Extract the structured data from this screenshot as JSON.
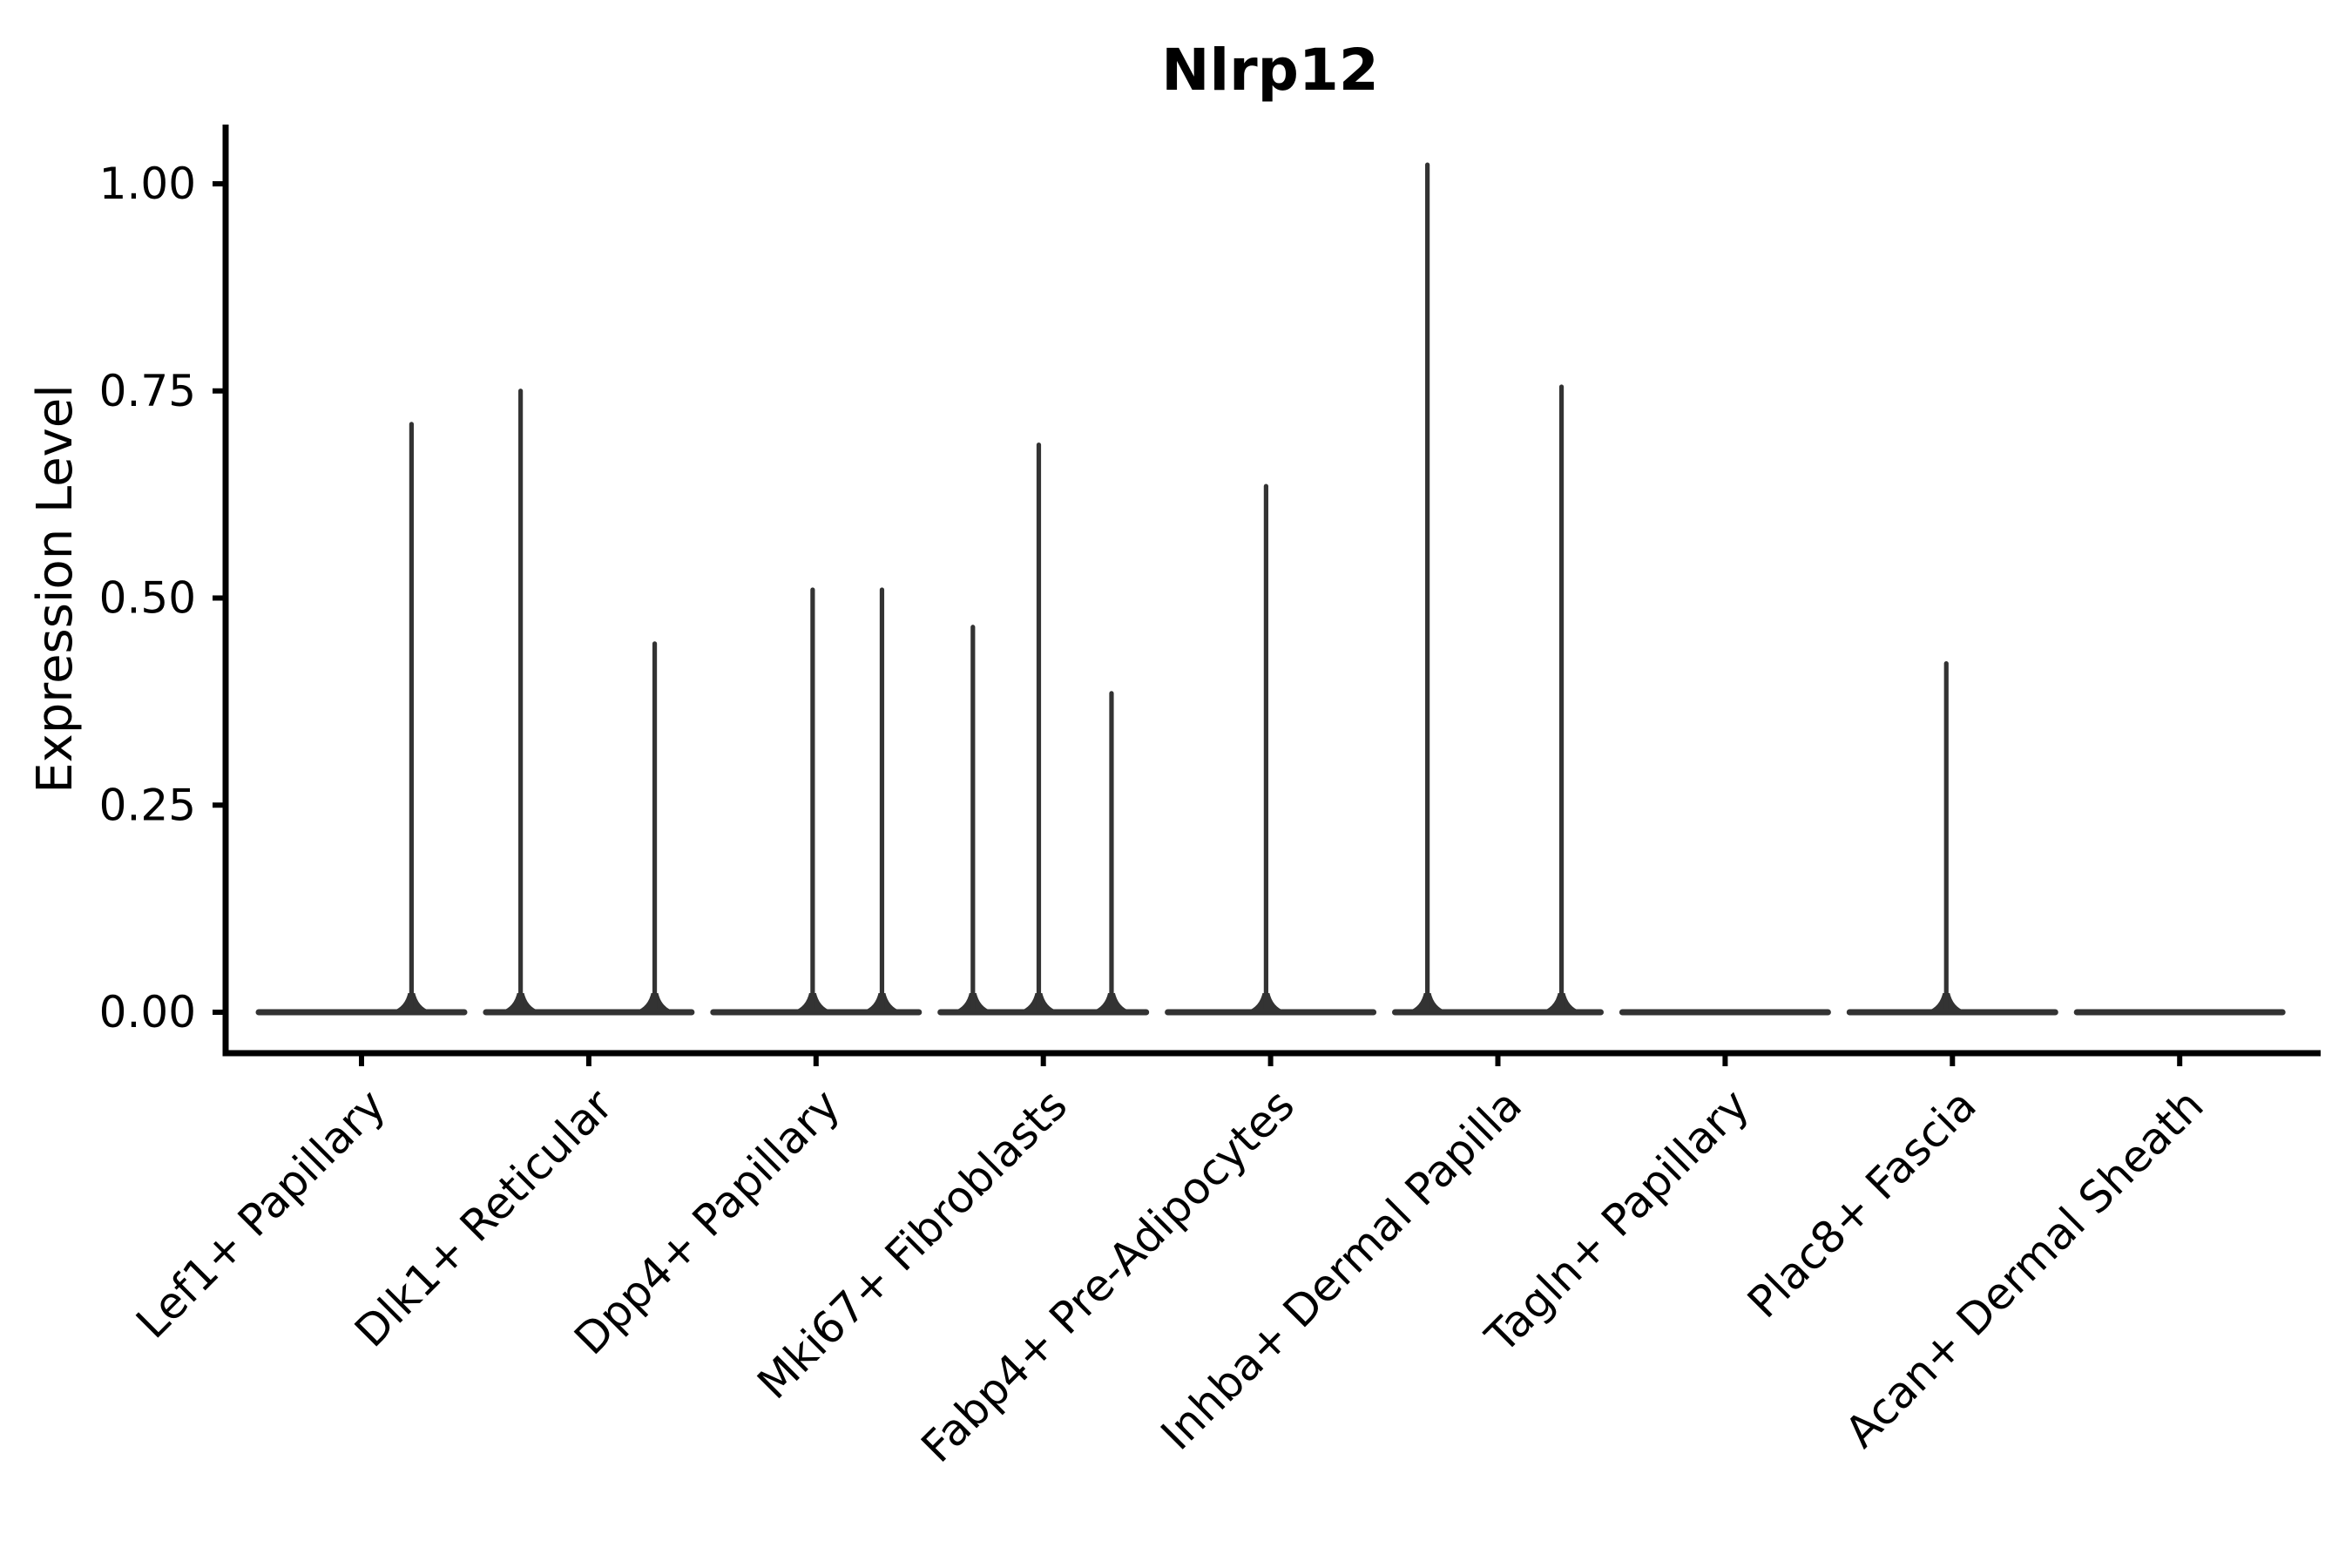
{
  "chart_data": {
    "type": "violin",
    "title": "Nlrp12",
    "ylabel": "Expression Level",
    "xlabel": "",
    "grid": false,
    "legend": "none",
    "ylim": [
      -0.05,
      1.07
    ],
    "yticks": [
      {
        "value": 0.0,
        "label": "0.00"
      },
      {
        "value": 0.25,
        "label": "0.25"
      },
      {
        "value": 0.5,
        "label": "0.50"
      },
      {
        "value": 0.75,
        "label": "0.75"
      },
      {
        "value": 1.0,
        "label": "1.00"
      }
    ],
    "categories": [
      "Lef1+ Papillary",
      "Dlk1+ Reticular",
      "Dpp4+ Papillary",
      "Mki67+ Fibroblasts",
      "Fabp4+ Pre-Adipocytes",
      "Inhba+ Dermal Papilla",
      "Tagln+ Papillary",
      "Plac8+ Fascia",
      "Acan+ Dermal Sheath"
    ],
    "series": [
      {
        "name": "Lef1+ Papillary",
        "baseline_value": 0.0,
        "spikes": [
          {
            "offset": 0.22,
            "value": 0.71
          }
        ]
      },
      {
        "name": "Dlk1+ Reticular",
        "baseline_value": 0.0,
        "spikes": [
          {
            "offset": -0.3,
            "value": 0.75
          },
          {
            "offset": 0.29,
            "value": 0.445
          }
        ]
      },
      {
        "name": "Dpp4+ Papillary",
        "baseline_value": 0.0,
        "spikes": [
          {
            "offset": -0.015,
            "value": 0.51
          },
          {
            "offset": 0.29,
            "value": 0.51
          }
        ]
      },
      {
        "name": "Mki67+ Fibroblasts",
        "baseline_value": 0.0,
        "spikes": [
          {
            "offset": -0.31,
            "value": 0.465
          },
          {
            "offset": -0.02,
            "value": 0.685
          },
          {
            "offset": 0.3,
            "value": 0.385
          }
        ]
      },
      {
        "name": "Fabp4+ Pre-Adipocytes",
        "baseline_value": 0.0,
        "spikes": [
          {
            "offset": -0.02,
            "value": 0.635
          }
        ]
      },
      {
        "name": "Inhba+ Dermal Papilla",
        "baseline_value": 0.0,
        "spikes": [
          {
            "offset": -0.31,
            "value": 1.023
          },
          {
            "offset": 0.28,
            "value": 0.755
          }
        ]
      },
      {
        "name": "Tagln+ Papillary",
        "baseline_value": 0.0,
        "spikes": []
      },
      {
        "name": "Plac8+ Fascia",
        "baseline_value": 0.0,
        "spikes": [
          {
            "offset": -0.027,
            "value": 0.421
          }
        ]
      },
      {
        "name": "Acan+ Dermal Sheath",
        "baseline_value": 0.0,
        "spikes": []
      }
    ]
  },
  "style": {
    "violin_color": "#333333",
    "axis_color": "#000000",
    "background": "#ffffff"
  }
}
